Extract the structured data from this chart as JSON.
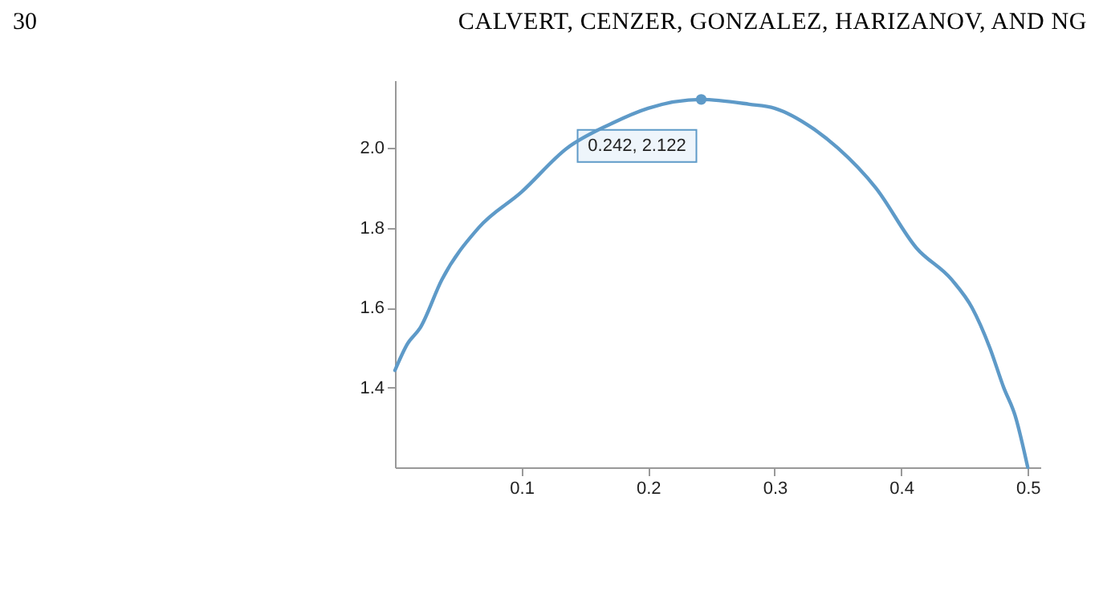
{
  "chart_data": {
    "type": "line",
    "annotations": [
      "30",
      "CALVERT, CENZER, GONZALEZ, HARIZANOV, AND NG",
      {
        "text": "0.242, 2.122",
        "x": 0.242,
        "y": 2.122
      }
    ],
    "x": [
      0,
      0.01,
      0.02,
      0.037,
      0.066,
      0.1,
      0.136,
      0.17,
      0.2,
      0.242,
      0.28,
      0.3,
      0.33,
      0.35,
      0.38,
      0.412,
      0.44,
      0.456,
      0.47,
      0.481,
      0.49,
      0.5
    ],
    "series": [
      {
        "color": "#5e9ac8",
        "values": [
          1.443,
          1.51,
          1.55,
          1.67,
          1.8,
          1.89,
          2.0,
          2.06,
          2.1,
          2.122,
          2.11,
          2.1,
          2.05,
          2.0,
          1.9,
          1.75,
          1.67,
          1.6,
          1.5,
          1.4,
          1.33,
          1.2
        ]
      }
    ],
    "xlim": [
      0,
      0.51
    ],
    "xticks": [
      {
        "value": 0.1,
        "label": "0.1"
      },
      {
        "value": 0.2,
        "label": "0.2"
      },
      {
        "value": 0.3,
        "label": "0.3"
      },
      {
        "value": 0.4,
        "label": "0.4"
      },
      {
        "value": 0.5,
        "label": "0.5"
      }
    ],
    "ylim": [
      1.2,
      2.17
    ],
    "yticks": [
      {
        "value": 1.4,
        "label": "1.4"
      },
      {
        "value": 1.6,
        "label": "1.6"
      },
      {
        "value": 1.8,
        "label": "1.8"
      },
      {
        "value": 2.0,
        "label": "2.0"
      }
    ],
    "grid": false,
    "marker": "none",
    "line_style": "solid"
  }
}
